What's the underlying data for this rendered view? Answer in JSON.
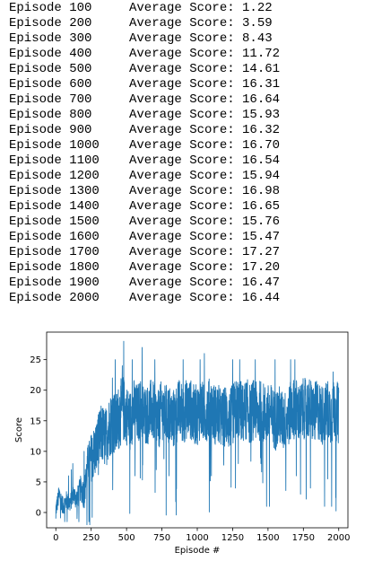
{
  "log": [
    {
      "episode": "Episode 100",
      "score": "Average Score: 1.22"
    },
    {
      "episode": "Episode 200",
      "score": "Average Score: 3.59"
    },
    {
      "episode": "Episode 300",
      "score": "Average Score: 8.43"
    },
    {
      "episode": "Episode 400",
      "score": "Average Score: 11.72"
    },
    {
      "episode": "Episode 500",
      "score": "Average Score: 14.61"
    },
    {
      "episode": "Episode 600",
      "score": "Average Score: 16.31"
    },
    {
      "episode": "Episode 700",
      "score": "Average Score: 16.64"
    },
    {
      "episode": "Episode 800",
      "score": "Average Score: 15.93"
    },
    {
      "episode": "Episode 900",
      "score": "Average Score: 16.32"
    },
    {
      "episode": "Episode 1000",
      "score": "Average Score: 16.70"
    },
    {
      "episode": "Episode 1100",
      "score": "Average Score: 16.54"
    },
    {
      "episode": "Episode 1200",
      "score": "Average Score: 15.94"
    },
    {
      "episode": "Episode 1300",
      "score": "Average Score: 16.98"
    },
    {
      "episode": "Episode 1400",
      "score": "Average Score: 16.65"
    },
    {
      "episode": "Episode 1500",
      "score": "Average Score: 15.76"
    },
    {
      "episode": "Episode 1600",
      "score": "Average Score: 15.47"
    },
    {
      "episode": "Episode 1700",
      "score": "Average Score: 17.27"
    },
    {
      "episode": "Episode 1800",
      "score": "Average Score: 17.20"
    },
    {
      "episode": "Episode 1900",
      "score": "Average Score: 16.47"
    },
    {
      "episode": "Episode 2000",
      "score": "Average Score: 16.44"
    }
  ],
  "chart_data": {
    "type": "line",
    "title": "",
    "xlabel": "Episode #",
    "ylabel": "Score",
    "xlim": [
      -65,
      2065
    ],
    "ylim": [
      -2.5,
      29.5
    ],
    "xticks": [
      0,
      250,
      500,
      750,
      1000,
      1250,
      1500,
      1750,
      2000
    ],
    "yticks": [
      0,
      5,
      10,
      15,
      20,
      25
    ],
    "grid": false,
    "legend": "none",
    "line_color": "#1f77b4",
    "series": [
      {
        "x": [
          0,
          25,
          50,
          75,
          100,
          125,
          150,
          175,
          200,
          225,
          250,
          275,
          300,
          325,
          350,
          375,
          400,
          425,
          450,
          475,
          500,
          525,
          550,
          575,
          600,
          625,
          650,
          675,
          700,
          725,
          750,
          775,
          800,
          825,
          850,
          875,
          900,
          925,
          950,
          975,
          1000,
          1025,
          1050,
          1075,
          1100,
          1125,
          1150,
          1175,
          1200,
          1225,
          1250,
          1275,
          1300,
          1325,
          1350,
          1375,
          1400,
          1425,
          1450,
          1475,
          1500,
          1525,
          1550,
          1575,
          1600,
          1625,
          1650,
          1675,
          1700,
          1725,
          1750,
          1775,
          1800,
          1825,
          1850,
          1875,
          1900,
          1925,
          1950,
          1975,
          2000
        ],
        "values": [
          0.5,
          3,
          1,
          2,
          1.5,
          3,
          2,
          4,
          3,
          8,
          9,
          10,
          11,
          13,
          12,
          14,
          15,
          14,
          16,
          17,
          16,
          15,
          17,
          16,
          17,
          16,
          16,
          17,
          16,
          15,
          17,
          16,
          16,
          15,
          16,
          17,
          16,
          17,
          17,
          16,
          16,
          17,
          16,
          17,
          17,
          16,
          16,
          15,
          16,
          15,
          16,
          17,
          17,
          16,
          17,
          16,
          17,
          16,
          17,
          16,
          16,
          16,
          15,
          16,
          15,
          15,
          16,
          17,
          17,
          16,
          17,
          17,
          17,
          16,
          17,
          16,
          16,
          17,
          16,
          17,
          16
        ],
        "spread": [
          1.5,
          1.5,
          1.5,
          1.5,
          1.5,
          1.5,
          2,
          2,
          2.5,
          3,
          4,
          4.5,
          5,
          5,
          5,
          5,
          5.5,
          5.5,
          5.5,
          5.5,
          5,
          5,
          5,
          5,
          5,
          5,
          5,
          5,
          5,
          5,
          5,
          5,
          5,
          5,
          5,
          5,
          5,
          5,
          5,
          5,
          5,
          5,
          5,
          5,
          5,
          5,
          5,
          5,
          5,
          5,
          5,
          5,
          5,
          5,
          5,
          5,
          5,
          5,
          5,
          5,
          5,
          5,
          5,
          5,
          5,
          5,
          5,
          5,
          5,
          5,
          5,
          5,
          5,
          5,
          5,
          5,
          5,
          5,
          5,
          5,
          5
        ],
        "peaks": [
          {
            "x": 0,
            "y": -1
          },
          {
            "x": 20,
            "y": 4
          },
          {
            "x": 90,
            "y": 6
          },
          {
            "x": 110,
            "y": 7
          },
          {
            "x": 120,
            "y": 8
          },
          {
            "x": 150,
            "y": -1
          },
          {
            "x": 200,
            "y": 10
          },
          {
            "x": 220,
            "y": -2
          },
          {
            "x": 240,
            "y": -2
          },
          {
            "x": 300,
            "y": 16
          },
          {
            "x": 400,
            "y": 22
          },
          {
            "x": 420,
            "y": 25
          },
          {
            "x": 470,
            "y": 24
          },
          {
            "x": 480,
            "y": 28
          },
          {
            "x": 540,
            "y": 25
          },
          {
            "x": 560,
            "y": 6
          },
          {
            "x": 610,
            "y": 27
          },
          {
            "x": 700,
            "y": 25
          },
          {
            "x": 710,
            "y": 7
          },
          {
            "x": 800,
            "y": 6
          },
          {
            "x": 900,
            "y": 25
          },
          {
            "x": 1020,
            "y": 25
          },
          {
            "x": 1050,
            "y": 26
          },
          {
            "x": 1100,
            "y": 6
          },
          {
            "x": 1250,
            "y": 25
          },
          {
            "x": 1270,
            "y": 4
          },
          {
            "x": 1290,
            "y": 8
          },
          {
            "x": 1300,
            "y": 25
          },
          {
            "x": 1410,
            "y": 25
          },
          {
            "x": 1450,
            "y": 8
          },
          {
            "x": 1490,
            "y": 1
          },
          {
            "x": 1510,
            "y": 1
          },
          {
            "x": 1550,
            "y": 25
          },
          {
            "x": 1660,
            "y": 25
          },
          {
            "x": 1690,
            "y": 25
          },
          {
            "x": 1700,
            "y": 6
          },
          {
            "x": 1730,
            "y": 3
          },
          {
            "x": 1800,
            "y": 4
          },
          {
            "x": 1900,
            "y": 1
          },
          {
            "x": 1900,
            "y": 25
          },
          {
            "x": 1950,
            "y": 1
          },
          {
            "x": 1960,
            "y": 23
          }
        ]
      }
    ]
  }
}
